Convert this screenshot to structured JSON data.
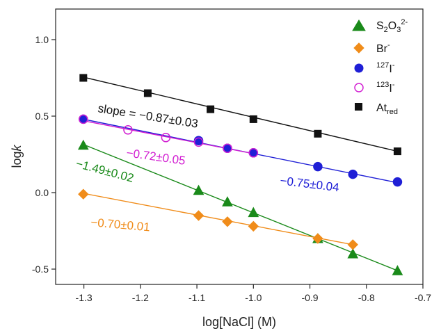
{
  "chart_data": {
    "type": "scatter",
    "title": "",
    "xlabel": "log[NaCl] (M)",
    "ylabel_main": "log",
    "ylabel_italic": "k",
    "xlim": [
      -1.35,
      -0.7
    ],
    "ylim": [
      -0.6,
      1.2
    ],
    "xticks": [
      "-1.3",
      "-1.2",
      "-1.1",
      "-1.0",
      "-0.9",
      "-0.8",
      "-0.7"
    ],
    "yticks": [
      "-0.5",
      "0.0",
      "0.5",
      "1.0"
    ],
    "legend_position": "top-right",
    "series": [
      {
        "name": "S2O3 2-",
        "legend_base": "S",
        "legend_sub1": "2",
        "legend_mid": "O",
        "legend_sub2": "3",
        "legend_sup": "2-",
        "marker": "triangle",
        "filled": true,
        "color": "#1a8a1a",
        "x": [
          -1.301,
          -1.097,
          -1.046,
          -1.0,
          -0.886,
          -0.824,
          -0.745
        ],
        "y": [
          0.31,
          0.015,
          -0.06,
          -0.13,
          -0.3,
          -0.4,
          -0.51
        ],
        "fit": {
          "x0": -1.301,
          "y0": 0.315,
          "x1": -0.745,
          "y1": -0.51
        },
        "annotation": "−1.49±0.02"
      },
      {
        "name": "Br-",
        "legend_base": "Br",
        "legend_sup": "-",
        "marker": "diamond",
        "filled": true,
        "color": "#f08c1a",
        "x": [
          -1.301,
          -1.097,
          -1.046,
          -1.0,
          -0.886,
          -0.824
        ],
        "y": [
          -0.01,
          -0.15,
          -0.19,
          -0.22,
          -0.3,
          -0.34
        ],
        "fit": {
          "x0": -1.301,
          "y0": -0.005,
          "x1": -0.824,
          "y1": -0.34
        },
        "annotation": "−0.70±0.01"
      },
      {
        "name": "127I-",
        "legend_pre": "127",
        "legend_base": "I",
        "legend_sup": "-",
        "marker": "circle",
        "filled": true,
        "color": "#1f1fd6",
        "x": [
          -1.301,
          -1.097,
          -1.046,
          -1.0,
          -0.886,
          -0.824,
          -0.745
        ],
        "y": [
          0.48,
          0.34,
          0.29,
          0.26,
          0.17,
          0.12,
          0.07
        ],
        "fit": {
          "x0": -1.301,
          "y0": 0.48,
          "x1": -0.745,
          "y1": 0.065
        },
        "annotation": "−0.75±0.04"
      },
      {
        "name": "123I-",
        "legend_pre": "123",
        "legend_base": "I",
        "legend_sup": "-",
        "marker": "circle",
        "filled": false,
        "color": "#d21fd2",
        "x": [
          -1.301,
          -1.222,
          -1.155,
          -1.097,
          -1.046,
          -1.0
        ],
        "y": [
          0.48,
          0.41,
          0.36,
          0.33,
          0.29,
          0.26
        ],
        "fit": {
          "x0": -1.301,
          "y0": 0.47,
          "x1": -1.0,
          "y1": 0.255
        },
        "annotation": "−0.72±0.05"
      },
      {
        "name": "At red",
        "legend_base": "At",
        "legend_sub1": "red",
        "marker": "square",
        "filled": true,
        "color": "#111111",
        "x": [
          -1.301,
          -1.187,
          -1.076,
          -1.0,
          -0.886,
          -0.745
        ],
        "y": [
          0.75,
          0.65,
          0.545,
          0.48,
          0.385,
          0.27
        ],
        "fit": {
          "x0": -1.301,
          "y0": 0.755,
          "x1": -0.745,
          "y1": 0.27
        },
        "annotation": "slope = −0.87±0.03"
      }
    ]
  }
}
